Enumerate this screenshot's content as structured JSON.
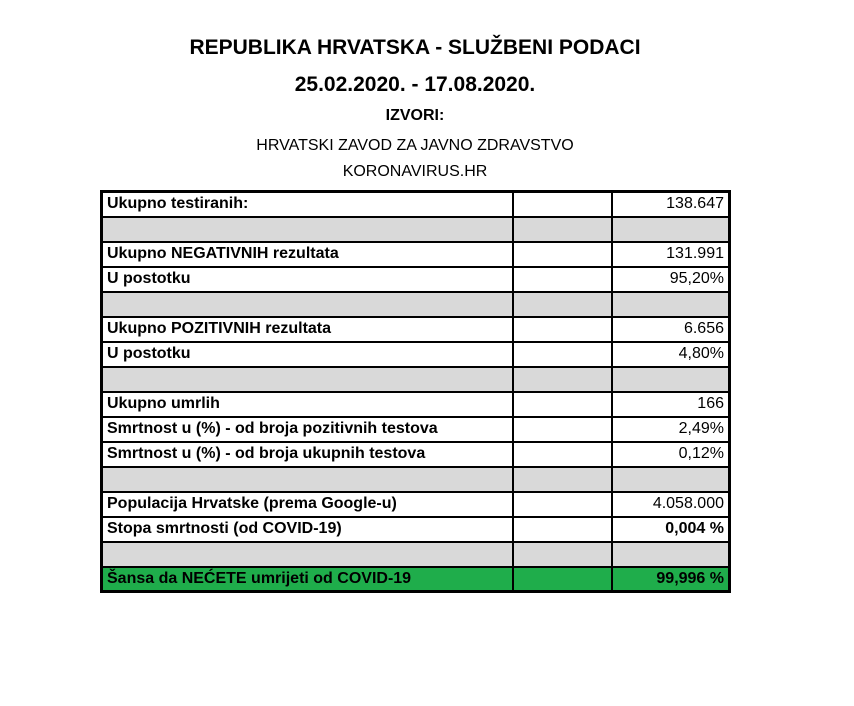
{
  "header": {
    "title": "REPUBLIKA HRVATSKA - SLUŽBENI PODACI",
    "date_range": "25.02.2020. - 17.08.2020.",
    "sources_label": "IZVORI:",
    "source_1": "HRVATSKI ZAVOD ZA JAVNO ZDRAVSTVO",
    "source_2": "KORONAVIRUS.HR"
  },
  "colors": {
    "gap_row": "#d9d9d9",
    "highlight_row": "#1fad4b"
  },
  "rows": [
    {
      "label": "Ukupno testiranih:",
      "value": "138.647"
    },
    {
      "label": "",
      "value": "",
      "gap": true
    },
    {
      "label": "Ukupno NEGATIVNIH rezultata",
      "value": "131.991"
    },
    {
      "label": "U postotku",
      "value": "95,20%"
    },
    {
      "label": "",
      "value": "",
      "gap": true
    },
    {
      "label": "Ukupno POZITIVNIH rezultata",
      "value": "6.656"
    },
    {
      "label": "U postotku",
      "value": "4,80%"
    },
    {
      "label": "",
      "value": "",
      "gap": true
    },
    {
      "label": "Ukupno umrlih",
      "value": "166"
    },
    {
      "label": "Smrtnost u (%) - od broja pozitivnih testova",
      "value": "2,49%"
    },
    {
      "label": "Smrtnost u (%) - od broja ukupnih testova",
      "value": "0,12%"
    },
    {
      "label": "",
      "value": "",
      "gap": true
    },
    {
      "label": "Populacija Hrvatske (prema Google-u)",
      "value": "4.058.000"
    },
    {
      "label": "Stopa smrtnosti (od COVID-19)",
      "value": "0,004 %",
      "bold_value": true
    },
    {
      "label": "",
      "value": "",
      "gap": true
    },
    {
      "label": "Šansa da NEĆETE umrijeti od COVID-19",
      "value": "99,996 %",
      "bold_value": true,
      "highlight": true
    }
  ]
}
